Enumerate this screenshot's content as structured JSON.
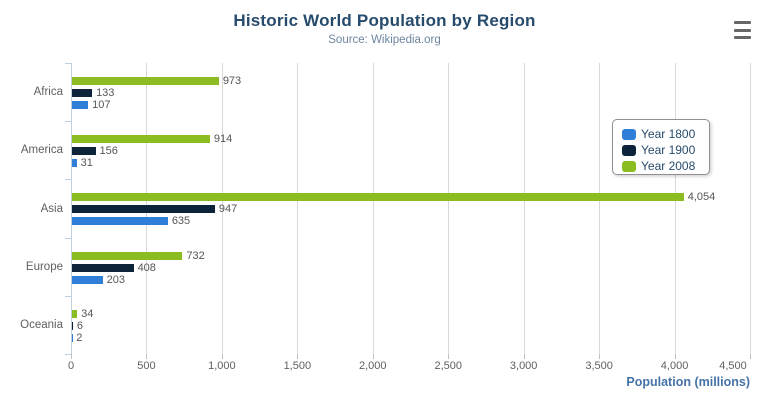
{
  "header": {
    "title": "Historic World Population by Region",
    "subtitle": "Source: Wikipedia.org",
    "menu_icon": "hamburger-icon"
  },
  "chart_data": {
    "type": "bar",
    "orientation": "horizontal",
    "title": "Historic World Population by Region",
    "subtitle": "Source: Wikipedia.org",
    "categories": [
      "Africa",
      "America",
      "Asia",
      "Europe",
      "Oceania"
    ],
    "series": [
      {
        "name": "Year 1800",
        "color": "#2f7ed8",
        "values": [
          107,
          31,
          635,
          203,
          2
        ]
      },
      {
        "name": "Year 1900",
        "color": "#0d233a",
        "values": [
          133,
          156,
          947,
          408,
          6
        ]
      },
      {
        "name": "Year 2008",
        "color": "#8bbc21",
        "values": [
          973,
          914,
          4054,
          732,
          34
        ]
      }
    ],
    "display_order_top_to_bottom": [
      "Year 2008",
      "Year 1900",
      "Year 1800"
    ],
    "data_labels": true,
    "xlabel": "Population (millions)",
    "xlim": [
      0,
      4500
    ],
    "x_ticks": [
      0,
      500,
      1000,
      1500,
      2000,
      2500,
      3000,
      3500,
      4000,
      4500
    ],
    "grid": true,
    "legend_position": "right-inside"
  },
  "colors": {
    "grid_line": "#d8d8d8",
    "category_axis_line": "#c0d0e0",
    "value_axis_tick": "#c0c0c0",
    "axis_label_text": "#606060",
    "data_label_text": "#555555",
    "title_text": "#274b6d",
    "subtitle_text": "#6d869f",
    "xaxis_title_text": "#4572a7",
    "legend_text": "#274b6d",
    "legend_border": "#909090",
    "menu_icon": "#666666"
  }
}
